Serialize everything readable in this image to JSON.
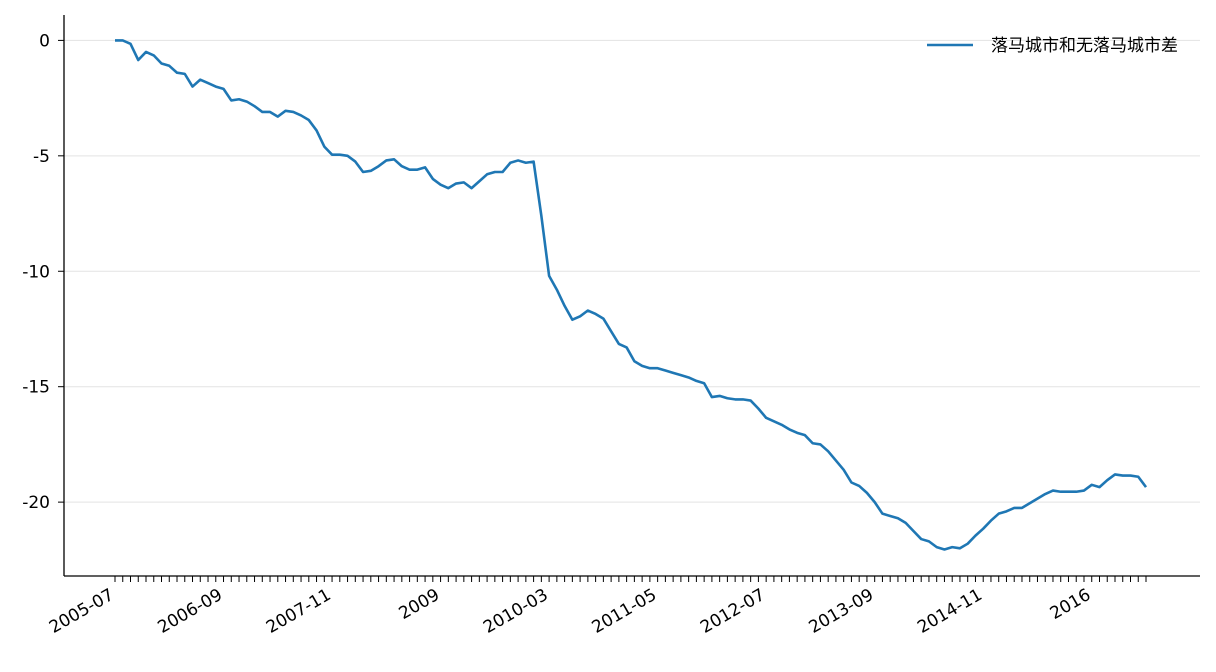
{
  "chart_data": {
    "type": "line",
    "categories": [
      "2005-07",
      null,
      null,
      null,
      null,
      null,
      null,
      null,
      null,
      null,
      null,
      null,
      null,
      null,
      "2006-09",
      null,
      null,
      null,
      null,
      null,
      null,
      null,
      null,
      null,
      null,
      null,
      null,
      null,
      "2007-11",
      null,
      null,
      null,
      null,
      null,
      null,
      null,
      null,
      null,
      null,
      null,
      null,
      null,
      "2009",
      null,
      null,
      null,
      null,
      null,
      null,
      null,
      null,
      null,
      null,
      null,
      null,
      null,
      "2010-03",
      null,
      null,
      null,
      null,
      null,
      null,
      null,
      null,
      null,
      null,
      null,
      null,
      null,
      "2011-05",
      null,
      null,
      null,
      null,
      null,
      null,
      null,
      null,
      null,
      null,
      null,
      null,
      null,
      "2012-07",
      null,
      null,
      null,
      null,
      null,
      null,
      null,
      null,
      null,
      null,
      null,
      null,
      null,
      "2013-09",
      null,
      null,
      null,
      null,
      null,
      null,
      null,
      null,
      null,
      null,
      null,
      null,
      null,
      "2014-11",
      null,
      null,
      null,
      null,
      null,
      null,
      null,
      null,
      null,
      null,
      null,
      null,
      null,
      "2016",
      null,
      null,
      null,
      null,
      null,
      null,
      null
    ],
    "series": [
      {
        "name": "落马城市和无落马城市差",
        "color": "#1f77b4",
        "values": [
          0,
          0,
          -0.15,
          -0.85,
          -0.5,
          -0.65,
          -1.0,
          -1.1,
          -1.4,
          -1.45,
          -2.0,
          -1.7,
          -1.85,
          -2.0,
          -2.1,
          -2.6,
          -2.55,
          -2.65,
          -2.85,
          -3.1,
          -3.1,
          -3.3,
          -3.05,
          -3.1,
          -3.25,
          -3.45,
          -3.9,
          -4.6,
          -4.95,
          -4.95,
          -5.0,
          -5.25,
          -5.7,
          -5.65,
          -5.45,
          -5.2,
          -5.15,
          -5.45,
          -5.6,
          -5.6,
          -5.5,
          -6.0,
          -6.25,
          -6.4,
          -6.2,
          -6.15,
          -6.4,
          -6.1,
          -5.8,
          -5.7,
          -5.7,
          -5.3,
          -5.2,
          -5.3,
          -5.25,
          -7.6,
          -10.2,
          -10.8,
          -11.5,
          -12.1,
          -11.95,
          -11.7,
          -11.85,
          -12.05,
          -12.6,
          -13.15,
          -13.3,
          -13.9,
          -14.1,
          -14.2,
          -14.2,
          -14.3,
          -14.4,
          -14.5,
          -14.6,
          -14.75,
          -14.85,
          -15.45,
          -15.4,
          -15.5,
          -15.55,
          -15.55,
          -15.6,
          -15.95,
          -16.35,
          -16.5,
          -16.65,
          -16.85,
          -17.0,
          -17.1,
          -17.45,
          -17.5,
          -17.8,
          -18.2,
          -18.6,
          -19.15,
          -19.3,
          -19.6,
          -20.0,
          -20.5,
          -20.6,
          -20.7,
          -20.9,
          -21.25,
          -21.6,
          -21.7,
          -21.95,
          -22.05,
          -21.95,
          -22.0,
          -21.8,
          -21.45,
          -21.15,
          -20.8,
          -20.5,
          -20.4,
          -20.25,
          -20.25,
          -20.05,
          -19.85,
          -19.65,
          -19.5,
          -19.55,
          -19.55,
          -19.55,
          -19.5,
          -19.25,
          -19.35,
          -19.05,
          -18.8,
          -18.85,
          -18.85,
          -18.9,
          -19.35
        ]
      }
    ],
    "ylim": [
      -23.2,
      1.1
    ],
    "yticks": [
      0,
      -5,
      -10,
      -15,
      -20
    ],
    "grid": true,
    "legend": "upper right"
  }
}
